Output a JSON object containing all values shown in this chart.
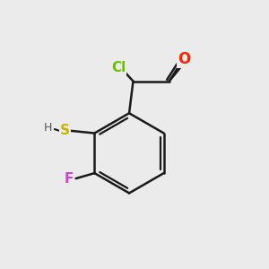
{
  "background_color": "#ebebeb",
  "bond_color": "#1a1a1a",
  "ring_color": "#1a1a1a",
  "atom_colors": {
    "Cl": "#6abf00",
    "O": "#ff2200",
    "S": "#c8b400",
    "F": "#cc44cc",
    "H": "#555555"
  },
  "figsize": [
    3.0,
    3.0
  ],
  "dpi": 100
}
